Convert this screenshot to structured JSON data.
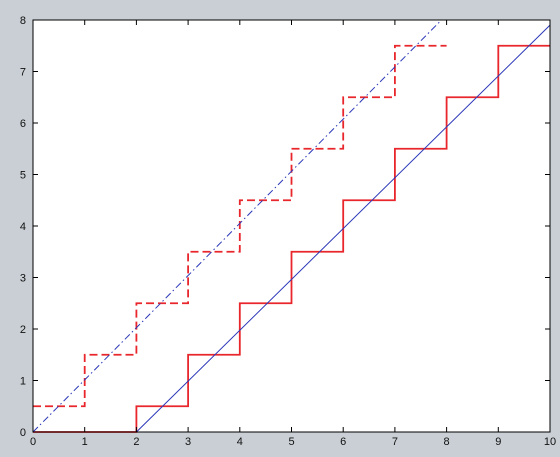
{
  "chart_data": {
    "type": "line",
    "title": "",
    "xlabel": "",
    "ylabel": "",
    "xlim": [
      0,
      10
    ],
    "ylim": [
      0,
      8
    ],
    "xticks": [
      "0",
      "1",
      "2",
      "3",
      "4",
      "5",
      "6",
      "7",
      "8",
      "9",
      "10"
    ],
    "yticks": [
      "0",
      "1",
      "2",
      "3",
      "4",
      "5",
      "6",
      "7",
      "8"
    ],
    "grid": false,
    "series": [
      {
        "style": "dashed",
        "color": "#e8262b",
        "shape": "step",
        "points": [
          [
            0,
            0.5
          ],
          [
            1,
            0.5
          ],
          [
            1,
            1.5
          ],
          [
            2,
            1.5
          ],
          [
            2,
            2.5
          ],
          [
            3,
            2.5
          ],
          [
            3,
            3.5
          ],
          [
            4,
            3.5
          ],
          [
            4,
            4.5
          ],
          [
            5,
            4.5
          ],
          [
            5,
            5.5
          ],
          [
            6,
            5.5
          ],
          [
            6,
            6.5
          ],
          [
            7,
            6.5
          ],
          [
            7,
            7.5
          ],
          [
            8,
            7.5
          ]
        ]
      },
      {
        "style": "solid",
        "color": "#e8262b",
        "shape": "step",
        "points": [
          [
            0,
            0
          ],
          [
            2,
            0
          ],
          [
            2,
            0.5
          ],
          [
            3,
            0.5
          ],
          [
            3,
            1.5
          ],
          [
            4,
            1.5
          ],
          [
            4,
            2.5
          ],
          [
            5,
            2.5
          ],
          [
            5,
            3.5
          ],
          [
            6,
            3.5
          ],
          [
            6,
            4.5
          ],
          [
            7,
            4.5
          ],
          [
            7,
            5.5
          ],
          [
            8,
            5.5
          ],
          [
            8,
            6.5
          ],
          [
            9,
            6.5
          ],
          [
            9,
            7.5
          ],
          [
            10,
            7.5
          ]
        ]
      },
      {
        "style": "dashdot",
        "color": "#2b37b8",
        "shape": "line",
        "points": [
          [
            0,
            0
          ],
          [
            7.9,
            8
          ]
        ]
      },
      {
        "style": "solid",
        "color": "#2b37b8",
        "shape": "line",
        "points": [
          [
            2,
            0
          ],
          [
            10,
            7.9
          ]
        ]
      }
    ]
  },
  "colors": {
    "figure_background": "#c9cfd4",
    "plot_background": "#ffffff",
    "axis": "#000000"
  }
}
